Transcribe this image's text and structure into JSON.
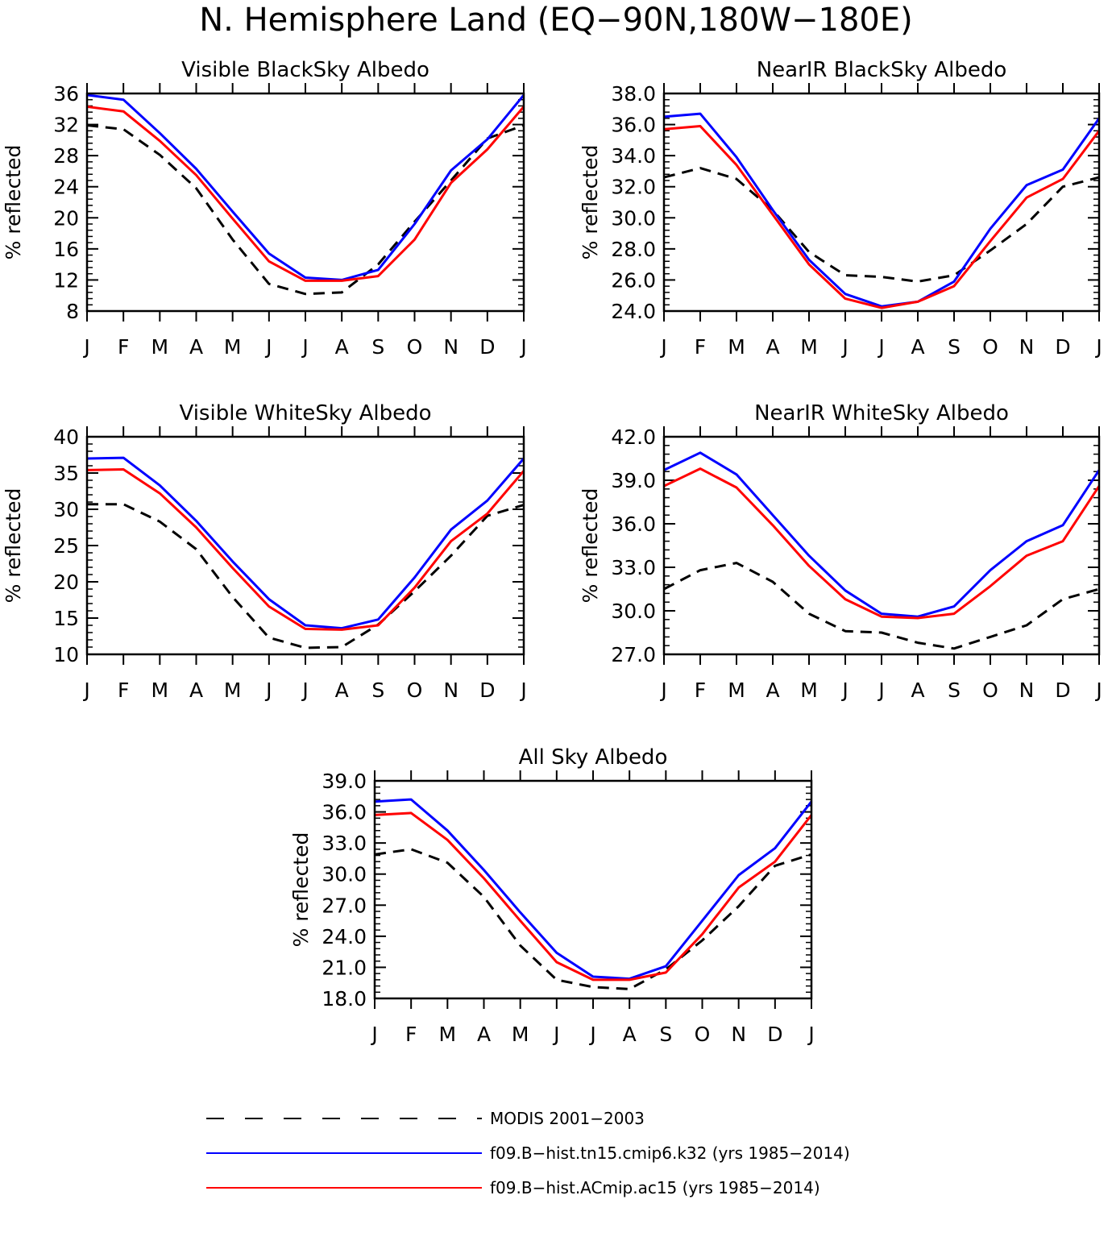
{
  "figure": {
    "title": "N. Hemisphere Land (EQ−90N,180W−180E)"
  },
  "series_styles": [
    {
      "name": "MODIS 2001−2003",
      "color": "#000000",
      "dash": "dashed"
    },
    {
      "name": "f09.B−hist.tn15.cmip6.k32 (yrs 1985−2014)",
      "color": "#0000ff",
      "dash": "solid"
    },
    {
      "name": "f09.B−hist.ACmip.ac15 (yrs 1985−2014)",
      "color": "#ff0000",
      "dash": "solid"
    }
  ],
  "legend": {
    "items": [
      {
        "label": "MODIS 2001−2003",
        "color": "#000000",
        "dash": "dashed"
      },
      {
        "label": "f09.B−hist.tn15.cmip6.k32 (yrs 1985−2014)",
        "color": "#0000ff",
        "dash": "solid"
      },
      {
        "label": "f09.B−hist.ACmip.ac15 (yrs 1985−2014)",
        "color": "#ff0000",
        "dash": "solid"
      }
    ]
  },
  "chart_data": [
    {
      "type": "line",
      "title": "Visible BlackSky Albedo",
      "ylabel": "% reflected",
      "xlabel": "",
      "categories": [
        "J",
        "F",
        "M",
        "A",
        "M",
        "J",
        "J",
        "A",
        "S",
        "O",
        "N",
        "D",
        "J"
      ],
      "ylim": [
        8,
        36
      ],
      "yticks": [
        "8",
        "12",
        "16",
        "20",
        "24",
        "28",
        "32",
        "36"
      ],
      "series": [
        {
          "name": "MODIS 2001−2003",
          "values": [
            31.9,
            31.4,
            28.1,
            23.8,
            17.2,
            11.5,
            10.2,
            10.4,
            14.0,
            19.5,
            24.8,
            30.2,
            31.9
          ]
        },
        {
          "name": "f09.B−hist.tn15.cmip6.k32 (yrs 1985−2014)",
          "values": [
            35.8,
            35.2,
            30.9,
            26.3,
            20.8,
            15.4,
            12.3,
            12.0,
            13.3,
            19.2,
            26.1,
            30.1,
            35.8
          ]
        },
        {
          "name": "f09.B−hist.ACmip.ac15 (yrs 1985−2014)",
          "values": [
            34.3,
            33.7,
            29.9,
            25.5,
            19.9,
            14.4,
            11.9,
            11.9,
            12.5,
            17.2,
            24.5,
            28.8,
            34.3
          ]
        }
      ]
    },
    {
      "type": "line",
      "title": "NearIR BlackSky Albedo",
      "ylabel": "% reflected",
      "xlabel": "",
      "categories": [
        "J",
        "F",
        "M",
        "A",
        "M",
        "J",
        "J",
        "A",
        "S",
        "O",
        "N",
        "D",
        "J"
      ],
      "ylim": [
        24.0,
        38.0
      ],
      "yticks": [
        "24.0",
        "26.0",
        "28.0",
        "30.0",
        "32.0",
        "34.0",
        "36.0",
        "38.0"
      ],
      "series": [
        {
          "name": "MODIS 2001−2003",
          "values": [
            32.6,
            33.2,
            32.5,
            30.5,
            27.8,
            26.3,
            26.2,
            25.9,
            26.3,
            27.9,
            29.6,
            32.0,
            32.6
          ]
        },
        {
          "name": "f09.B−hist.tn15.cmip6.k32 (yrs 1985−2014)",
          "values": [
            36.5,
            36.7,
            33.9,
            30.5,
            27.3,
            25.1,
            24.3,
            24.6,
            25.9,
            29.3,
            32.1,
            33.1,
            36.4
          ]
        },
        {
          "name": "f09.B−hist.ACmip.ac15 (yrs 1985−2014)",
          "values": [
            35.7,
            35.9,
            33.4,
            30.2,
            27.0,
            24.8,
            24.2,
            24.6,
            25.6,
            28.5,
            31.3,
            32.5,
            35.6
          ]
        }
      ]
    },
    {
      "type": "line",
      "title": "Visible WhiteSky Albedo",
      "ylabel": "% reflected",
      "xlabel": "",
      "categories": [
        "J",
        "F",
        "M",
        "A",
        "M",
        "J",
        "J",
        "A",
        "S",
        "O",
        "N",
        "D",
        "J"
      ],
      "ylim": [
        10,
        40
      ],
      "yticks": [
        "10",
        "15",
        "20",
        "25",
        "30",
        "35",
        "40"
      ],
      "series": [
        {
          "name": "MODIS 2001−2003",
          "values": [
            30.7,
            30.7,
            28.3,
            24.5,
            17.9,
            12.3,
            10.9,
            11.0,
            14.1,
            18.7,
            23.6,
            29.1,
            30.6
          ]
        },
        {
          "name": "f09.B−hist.tn15.cmip6.k32 (yrs 1985−2014)",
          "values": [
            37.0,
            37.1,
            33.3,
            28.4,
            22.8,
            17.6,
            14.0,
            13.6,
            14.8,
            20.6,
            27.2,
            31.2,
            37.0
          ]
        },
        {
          "name": "f09.B−hist.ACmip.ac15 (yrs 1985−2014)",
          "values": [
            35.4,
            35.5,
            32.2,
            27.5,
            21.9,
            16.6,
            13.5,
            13.4,
            14.0,
            19.2,
            25.6,
            29.4,
            35.3
          ]
        }
      ]
    },
    {
      "type": "line",
      "title": "NearIR WhiteSky Albedo",
      "ylabel": "% reflected",
      "xlabel": "",
      "categories": [
        "J",
        "F",
        "M",
        "A",
        "M",
        "J",
        "J",
        "A",
        "S",
        "O",
        "N",
        "D",
        "J"
      ],
      "ylim": [
        27.0,
        42.0
      ],
      "yticks": [
        "27.0",
        "30.0",
        "33.0",
        "36.0",
        "39.0",
        "42.0"
      ],
      "series": [
        {
          "name": "MODIS 2001−2003",
          "values": [
            31.5,
            32.8,
            33.3,
            32.0,
            29.8,
            28.6,
            28.5,
            27.8,
            27.4,
            28.2,
            29.0,
            30.8,
            31.5
          ]
        },
        {
          "name": "f09.B−hist.tn15.cmip6.k32 (yrs 1985−2014)",
          "values": [
            39.7,
            40.9,
            39.4,
            36.6,
            33.8,
            31.4,
            29.8,
            29.6,
            30.3,
            32.8,
            34.8,
            35.9,
            39.7
          ]
        },
        {
          "name": "f09.B−hist.ACmip.ac15 (yrs 1985−2014)",
          "values": [
            38.6,
            39.8,
            38.5,
            35.9,
            33.1,
            30.8,
            29.6,
            29.5,
            29.8,
            31.7,
            33.8,
            34.8,
            38.6
          ]
        }
      ]
    },
    {
      "type": "line",
      "title": "All Sky Albedo",
      "ylabel": "% reflected",
      "xlabel": "",
      "categories": [
        "J",
        "F",
        "M",
        "A",
        "M",
        "J",
        "J",
        "A",
        "S",
        "O",
        "N",
        "D",
        "J"
      ],
      "ylim": [
        18.0,
        39.0
      ],
      "yticks": [
        "18.0",
        "21.0",
        "24.0",
        "27.0",
        "30.0",
        "33.0",
        "36.0",
        "39.0"
      ],
      "series": [
        {
          "name": "MODIS 2001−2003",
          "values": [
            31.9,
            32.4,
            31.1,
            27.8,
            23.1,
            19.8,
            19.1,
            18.9,
            20.8,
            23.6,
            26.9,
            30.8,
            31.9
          ]
        },
        {
          "name": "f09.B−hist.tn15.cmip6.k32 (yrs 1985−2014)",
          "values": [
            37.0,
            37.2,
            34.2,
            30.4,
            26.3,
            22.4,
            20.1,
            19.9,
            21.1,
            25.5,
            29.9,
            32.5,
            37.0
          ]
        },
        {
          "name": "f09.B−hist.ACmip.ac15 (yrs 1985−2014)",
          "values": [
            35.7,
            35.9,
            33.3,
            29.6,
            25.5,
            21.5,
            19.8,
            19.8,
            20.5,
            24.2,
            28.7,
            31.2,
            35.7
          ]
        }
      ]
    }
  ]
}
